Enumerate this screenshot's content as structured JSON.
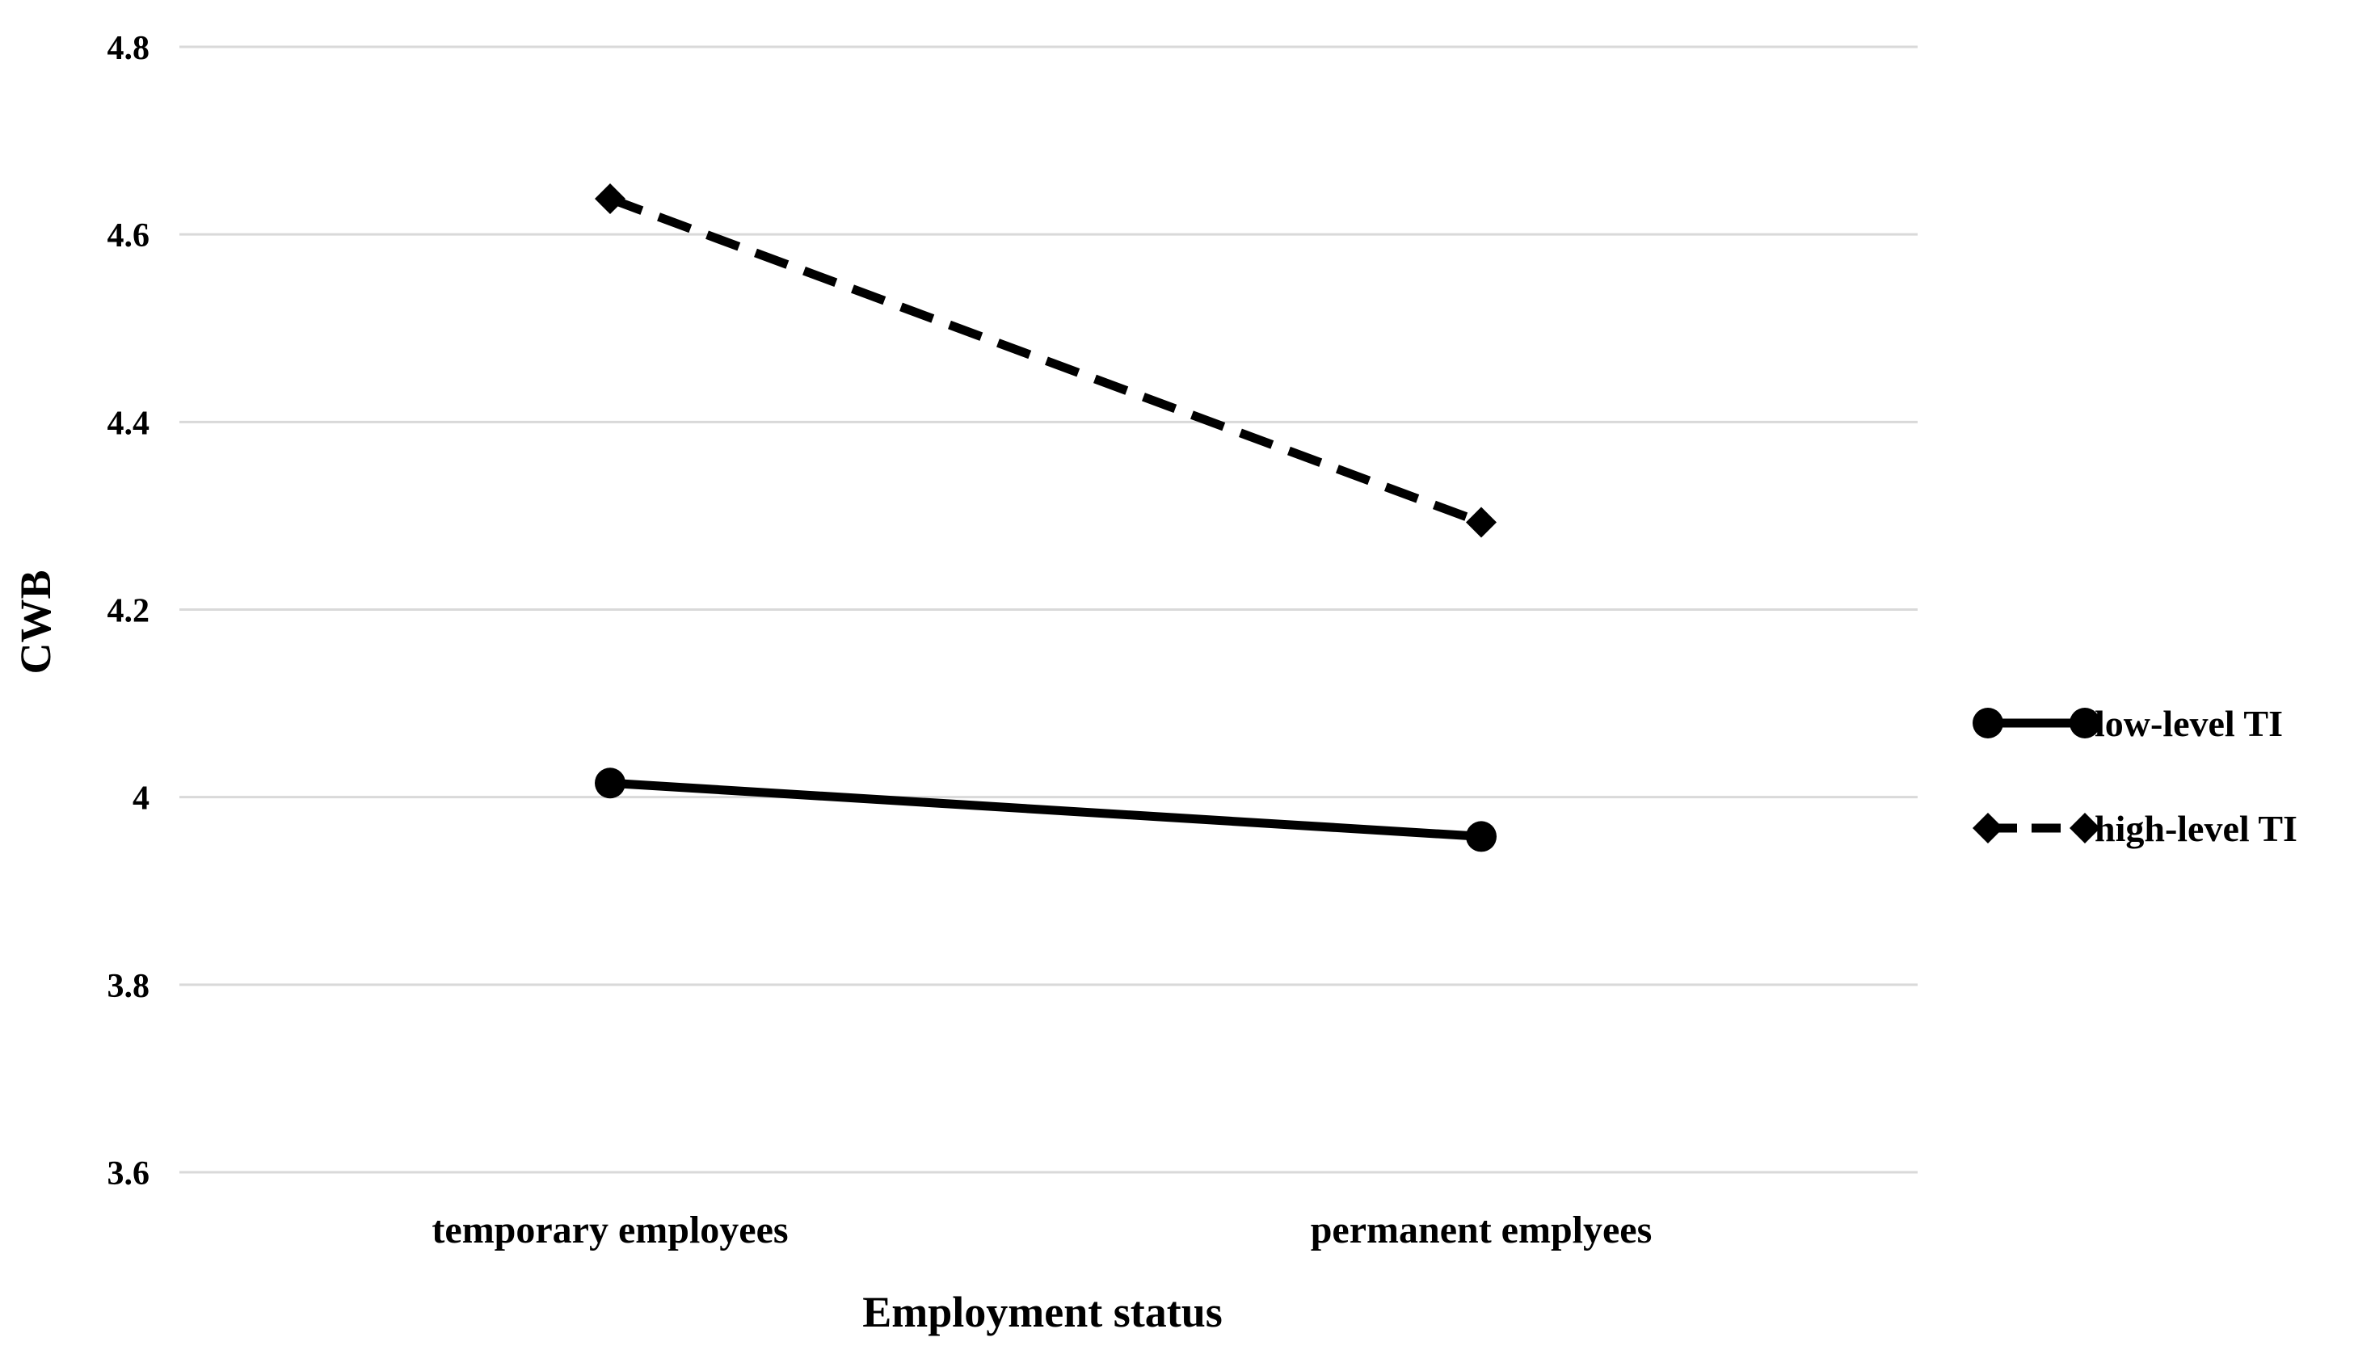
{
  "chart_data": {
    "type": "line",
    "categories": [
      "temporary employees",
      "permanent emplyees"
    ],
    "series": [
      {
        "name": "low-level TI",
        "values": [
          4.015,
          3.958
        ],
        "line_style": "solid",
        "marker": "circle",
        "color": "#000000"
      },
      {
        "name": "high-level TI",
        "values": [
          4.638,
          4.293
        ],
        "line_style": "dashed",
        "marker": "diamond",
        "color": "#000000"
      }
    ],
    "title": "",
    "xlabel": "Employment status",
    "ylabel": "CWB",
    "ylim": [
      3.6,
      4.8
    ],
    "yticks": [
      "3.6",
      "3.8",
      "4",
      "4.2",
      "4.4",
      "4.6",
      "4.8"
    ],
    "grid": "horizontal",
    "legend_position": "right",
    "gridline_color": "#d9d9d9"
  }
}
